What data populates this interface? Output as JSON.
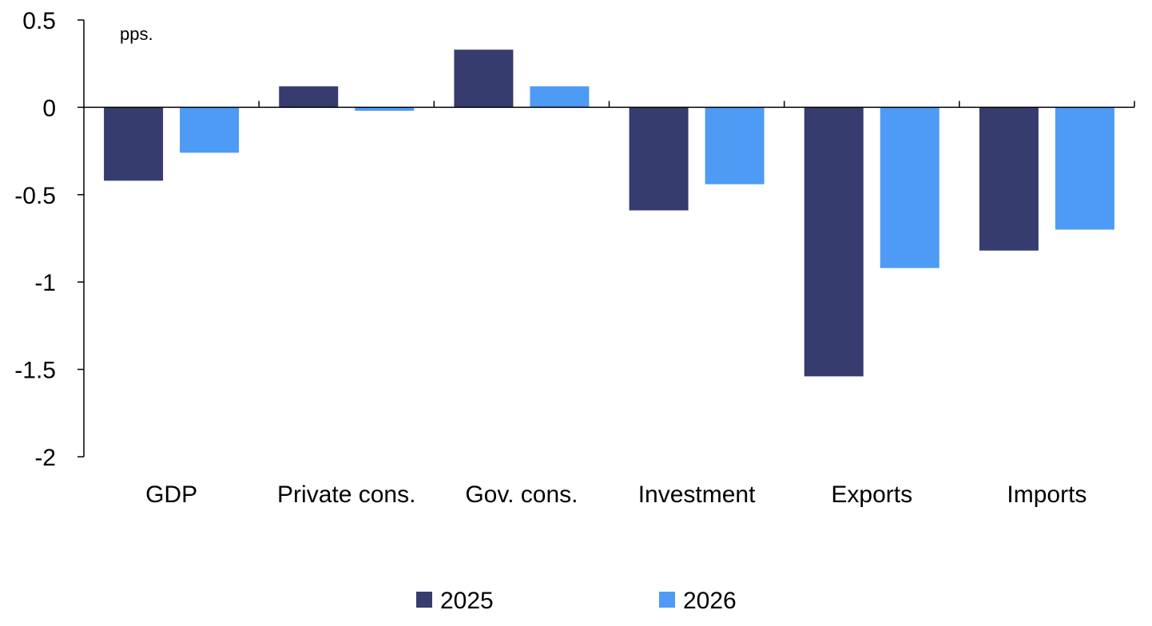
{
  "chart_data": {
    "type": "bar",
    "unit_label": "pps.",
    "categories": [
      "GDP",
      "Private cons.",
      "Gov. cons.",
      "Investment",
      "Exports",
      "Imports"
    ],
    "series": [
      {
        "name": "2025",
        "color": "#373c6e",
        "values": [
          -0.42,
          0.12,
          0.33,
          -0.59,
          -1.54,
          -0.82
        ]
      },
      {
        "name": "2026",
        "color": "#4d9bf4",
        "values": [
          -0.26,
          -0.02,
          0.12,
          -0.44,
          -0.92,
          -0.7
        ]
      }
    ],
    "ylim": [
      -2,
      0.5
    ],
    "yticks": [
      0.5,
      0,
      -0.5,
      -1,
      -1.5,
      -2
    ],
    "ytick_labels": [
      "0.5",
      "0",
      "-0.5",
      "-1",
      "-1.5",
      "-2"
    ],
    "grid": false,
    "legend_position": "bottom-center"
  }
}
